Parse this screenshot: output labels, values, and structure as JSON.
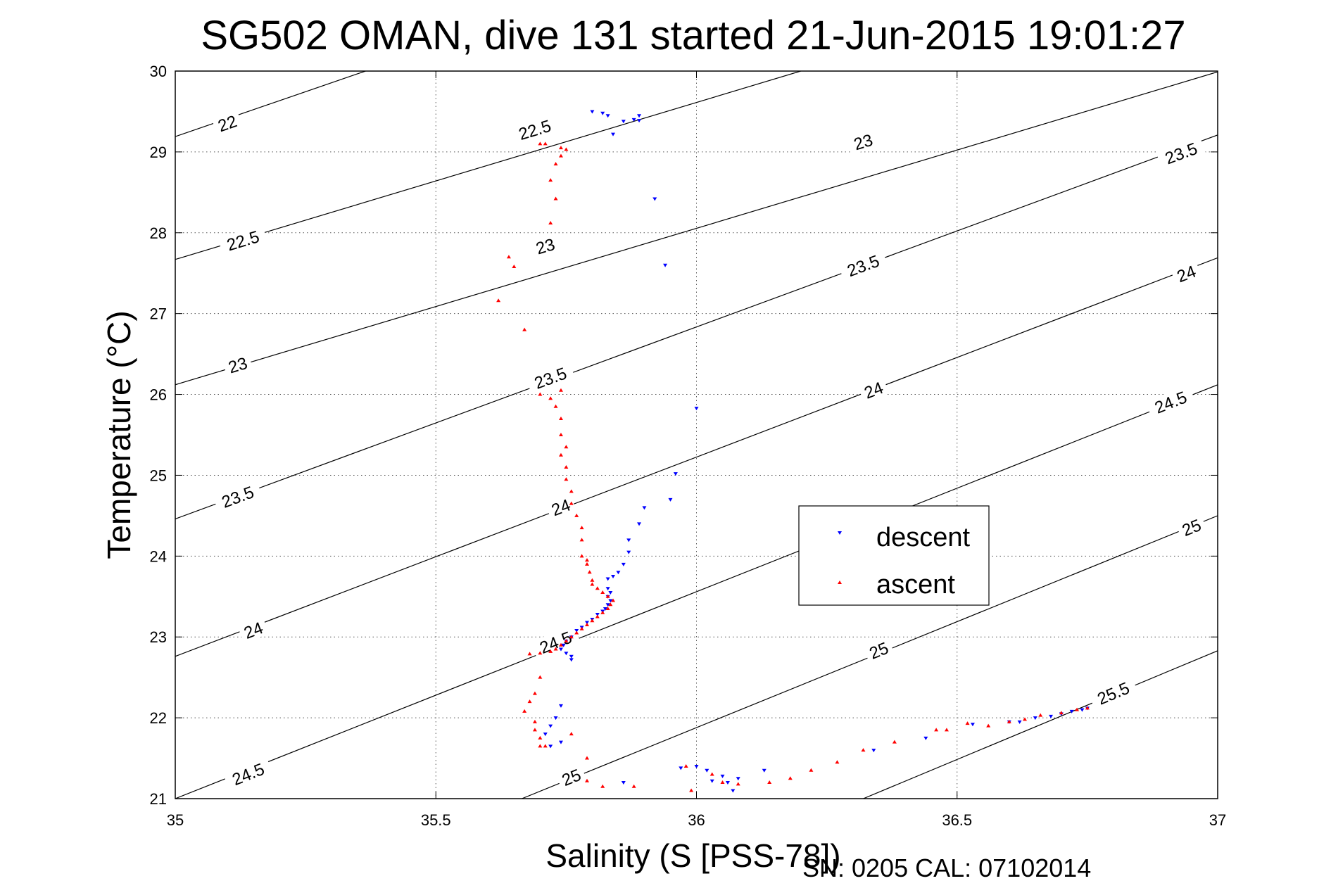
{
  "chart_data": {
    "type": "scatter",
    "title": "SG502 OMAN, dive 131 started 21-Jun-2015 19:01:27",
    "xlabel": "Salinity (S [PSS-78])",
    "ylabel": "Temperature (°C)",
    "xlim": [
      35,
      37
    ],
    "ylim": [
      21,
      30
    ],
    "xticks": [
      "35",
      "35.5",
      "36",
      "36.5",
      "37"
    ],
    "yticks": [
      "21",
      "22",
      "23",
      "24",
      "25",
      "26",
      "27",
      "28",
      "29",
      "30"
    ],
    "grid": true,
    "legend_position": "center-right",
    "footnote": "SN: 0205  CAL: 07102014",
    "isopycnals": [
      {
        "label": "22",
        "points": [
          [
            35,
            29.19
          ],
          [
            35.365,
            30
          ]
        ],
        "label_pos": [
          35.1,
          29.35
        ]
      },
      {
        "label": "22.5",
        "points": [
          [
            35,
            27.67
          ],
          [
            36.2,
            30
          ]
        ],
        "label_pos": [
          35.69,
          29.27
        ]
      },
      {
        "label": "22.5",
        "points": [
          [
            35,
            27.67
          ],
          [
            36.2,
            30
          ]
        ],
        "label_pos": [
          35.13,
          27.9
        ]
      },
      {
        "label": "23",
        "points": [
          [
            35,
            26.12
          ],
          [
            37,
            29.99
          ]
        ],
        "label_pos": [
          36.32,
          29.12
        ]
      },
      {
        "label": "23",
        "points": [
          [
            35,
            26.12
          ],
          [
            37,
            29.99
          ]
        ],
        "label_pos": [
          35.12,
          26.36
        ]
      },
      {
        "label": "23",
        "points": [
          [
            35,
            26.12
          ],
          [
            37,
            29.99
          ]
        ],
        "label_pos": [
          35.71,
          27.83
        ]
      },
      {
        "label": "23.5",
        "points": [
          [
            35,
            24.46
          ],
          [
            37,
            29.21
          ]
        ],
        "label_pos": [
          36.93,
          28.98
        ]
      },
      {
        "label": "23.5",
        "points": [
          [
            35,
            24.46
          ],
          [
            37,
            29.21
          ]
        ],
        "label_pos": [
          36.32,
          27.59
        ]
      },
      {
        "label": "23.5",
        "points": [
          [
            35,
            24.46
          ],
          [
            37,
            29.21
          ]
        ],
        "label_pos": [
          35.72,
          26.2
        ]
      },
      {
        "label": "23.5",
        "points": [
          [
            35,
            24.46
          ],
          [
            37,
            29.21
          ]
        ],
        "label_pos": [
          35.12,
          24.73
        ]
      },
      {
        "label": "24",
        "points": [
          [
            35,
            22.76
          ],
          [
            37,
            27.69
          ]
        ],
        "label_pos": [
          36.94,
          27.49
        ]
      },
      {
        "label": "24",
        "points": [
          [
            35,
            22.76
          ],
          [
            37,
            27.69
          ]
        ],
        "label_pos": [
          36.34,
          26.05
        ]
      },
      {
        "label": "24",
        "points": [
          [
            35,
            22.76
          ],
          [
            37,
            27.69
          ]
        ],
        "label_pos": [
          35.74,
          24.6
        ]
      },
      {
        "label": "24",
        "points": [
          [
            35,
            22.76
          ],
          [
            37,
            27.69
          ]
        ],
        "label_pos": [
          35.15,
          23.08
        ]
      },
      {
        "label": "24.5",
        "points": [
          [
            35,
            21.0
          ],
          [
            37,
            26.12
          ]
        ],
        "label_pos": [
          36.91,
          25.9
        ]
      },
      {
        "label": "24.5",
        "points": [
          [
            35,
            21.0
          ],
          [
            37,
            26.12
          ]
        ],
        "label_pos": [
          35.73,
          22.93
        ]
      },
      {
        "label": "24.5",
        "points": [
          [
            35,
            21.0
          ],
          [
            37,
            26.12
          ]
        ],
        "label_pos": [
          35.14,
          21.3
        ]
      },
      {
        "label": "25",
        "points": [
          [
            35.665,
            21
          ],
          [
            37,
            24.5
          ]
        ],
        "label_pos": [
          36.95,
          24.35
        ]
      },
      {
        "label": "25",
        "points": [
          [
            35.665,
            21
          ],
          [
            37,
            24.5
          ]
        ],
        "label_pos": [
          36.35,
          22.83
        ]
      },
      {
        "label": "25",
        "points": [
          [
            35.665,
            21
          ],
          [
            37,
            24.5
          ]
        ],
        "label_pos": [
          35.76,
          21.26
        ]
      },
      {
        "label": "25.5",
        "points": [
          [
            36.32,
            21
          ],
          [
            37,
            22.83
          ]
        ],
        "label_pos": [
          36.8,
          22.3
        ]
      }
    ],
    "series": [
      {
        "name": "descent",
        "color": "#0000ff",
        "marker": "triangle-down",
        "points": [
          [
            35.8,
            29.5
          ],
          [
            35.82,
            29.48
          ],
          [
            35.83,
            29.45
          ],
          [
            35.86,
            29.38
          ],
          [
            35.88,
            29.4
          ],
          [
            35.89,
            29.39
          ],
          [
            35.89,
            29.45
          ],
          [
            35.84,
            29.22
          ],
          [
            35.92,
            28.42
          ],
          [
            35.94,
            27.6
          ],
          [
            36.0,
            25.83
          ],
          [
            35.96,
            25.02
          ],
          [
            35.95,
            24.7
          ],
          [
            35.9,
            24.6
          ],
          [
            35.89,
            24.4
          ],
          [
            35.87,
            24.2
          ],
          [
            35.87,
            24.05
          ],
          [
            35.86,
            23.9
          ],
          [
            35.85,
            23.8
          ],
          [
            35.84,
            23.75
          ],
          [
            35.83,
            23.72
          ],
          [
            35.83,
            23.6
          ],
          [
            35.835,
            23.55
          ],
          [
            35.83,
            23.5
          ],
          [
            35.835,
            23.45
          ],
          [
            35.83,
            23.4
          ],
          [
            35.825,
            23.35
          ],
          [
            35.82,
            23.32
          ],
          [
            35.81,
            23.28
          ],
          [
            35.8,
            23.22
          ],
          [
            35.79,
            23.18
          ],
          [
            35.78,
            23.12
          ],
          [
            35.77,
            23.08
          ],
          [
            35.76,
            23.0
          ],
          [
            35.75,
            22.95
          ],
          [
            35.745,
            22.9
          ],
          [
            35.74,
            22.85
          ],
          [
            35.75,
            22.8
          ],
          [
            35.76,
            22.76
          ],
          [
            35.76,
            22.72
          ],
          [
            35.74,
            22.15
          ],
          [
            35.73,
            22.0
          ],
          [
            35.72,
            21.9
          ],
          [
            35.71,
            21.8
          ],
          [
            35.74,
            21.7
          ],
          [
            35.72,
            21.65
          ],
          [
            35.86,
            21.2
          ],
          [
            35.97,
            21.38
          ],
          [
            36.0,
            21.4
          ],
          [
            36.02,
            21.35
          ],
          [
            36.05,
            21.28
          ],
          [
            36.08,
            21.25
          ],
          [
            36.06,
            21.2
          ],
          [
            36.07,
            21.1
          ],
          [
            36.03,
            21.22
          ],
          [
            36.13,
            21.35
          ],
          [
            36.34,
            21.6
          ],
          [
            36.44,
            21.75
          ],
          [
            36.53,
            21.92
          ],
          [
            36.6,
            21.95
          ],
          [
            36.62,
            21.95
          ],
          [
            36.65,
            22.0
          ],
          [
            36.68,
            22.02
          ],
          [
            36.7,
            22.05
          ],
          [
            36.72,
            22.08
          ],
          [
            36.74,
            22.1
          ],
          [
            36.75,
            22.12
          ]
        ]
      },
      {
        "name": "ascent",
        "color": "#ff0000",
        "marker": "triangle-up",
        "points": [
          [
            35.7,
            29.1
          ],
          [
            35.71,
            29.1
          ],
          [
            35.74,
            29.05
          ],
          [
            35.75,
            29.03
          ],
          [
            35.74,
            28.95
          ],
          [
            35.73,
            28.85
          ],
          [
            35.72,
            28.65
          ],
          [
            35.73,
            28.42
          ],
          [
            35.72,
            28.12
          ],
          [
            35.64,
            27.7
          ],
          [
            35.65,
            27.58
          ],
          [
            35.62,
            27.16
          ],
          [
            35.67,
            26.8
          ],
          [
            35.7,
            26.0
          ],
          [
            35.72,
            25.95
          ],
          [
            35.74,
            26.05
          ],
          [
            35.73,
            25.85
          ],
          [
            35.74,
            25.7
          ],
          [
            35.74,
            25.5
          ],
          [
            35.75,
            25.35
          ],
          [
            35.74,
            25.25
          ],
          [
            35.75,
            25.1
          ],
          [
            35.75,
            24.95
          ],
          [
            35.76,
            24.8
          ],
          [
            35.76,
            24.65
          ],
          [
            35.77,
            24.5
          ],
          [
            35.78,
            24.35
          ],
          [
            35.78,
            24.2
          ],
          [
            35.78,
            24.0
          ],
          [
            35.79,
            23.95
          ],
          [
            35.79,
            23.9
          ],
          [
            35.795,
            23.8
          ],
          [
            35.8,
            23.7
          ],
          [
            35.8,
            23.65
          ],
          [
            35.81,
            23.6
          ],
          [
            35.82,
            23.55
          ],
          [
            35.83,
            23.5
          ],
          [
            35.84,
            23.45
          ],
          [
            35.835,
            23.4
          ],
          [
            35.83,
            23.35
          ],
          [
            35.82,
            23.3
          ],
          [
            35.81,
            23.25
          ],
          [
            35.8,
            23.2
          ],
          [
            35.79,
            23.15
          ],
          [
            35.78,
            23.1
          ],
          [
            35.77,
            23.05
          ],
          [
            35.76,
            23.0
          ],
          [
            35.75,
            22.95
          ],
          [
            35.74,
            22.9
          ],
          [
            35.73,
            22.85
          ],
          [
            35.72,
            22.82
          ],
          [
            35.7,
            22.8
          ],
          [
            35.68,
            22.79
          ],
          [
            35.7,
            22.5
          ],
          [
            35.69,
            22.3
          ],
          [
            35.68,
            22.2
          ],
          [
            35.67,
            22.08
          ],
          [
            35.69,
            21.95
          ],
          [
            35.69,
            21.85
          ],
          [
            35.7,
            21.75
          ],
          [
            35.7,
            21.65
          ],
          [
            35.71,
            21.65
          ],
          [
            35.76,
            21.8
          ],
          [
            35.79,
            21.5
          ],
          [
            35.79,
            21.22
          ],
          [
            35.82,
            21.15
          ],
          [
            35.88,
            21.15
          ],
          [
            35.98,
            21.4
          ],
          [
            35.99,
            21.1
          ],
          [
            36.03,
            21.3
          ],
          [
            36.05,
            21.2
          ],
          [
            36.08,
            21.18
          ],
          [
            36.14,
            21.2
          ],
          [
            36.18,
            21.25
          ],
          [
            36.22,
            21.35
          ],
          [
            36.27,
            21.45
          ],
          [
            36.32,
            21.6
          ],
          [
            36.38,
            21.7
          ],
          [
            36.46,
            21.85
          ],
          [
            36.48,
            21.85
          ],
          [
            36.52,
            21.93
          ],
          [
            36.56,
            21.9
          ],
          [
            36.6,
            21.95
          ],
          [
            36.63,
            21.98
          ],
          [
            36.66,
            22.03
          ],
          [
            36.7,
            22.06
          ],
          [
            36.73,
            22.1
          ],
          [
            36.75,
            22.12
          ]
        ]
      }
    ]
  }
}
